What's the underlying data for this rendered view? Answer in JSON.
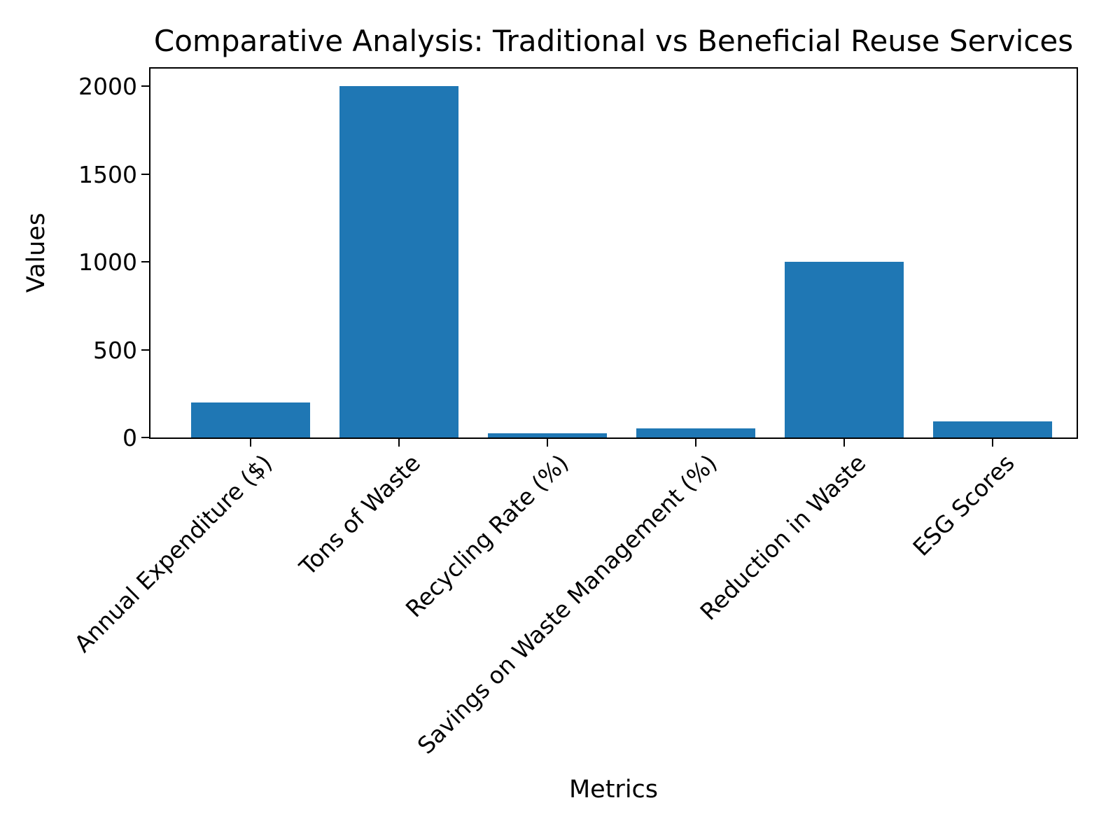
{
  "chart_data": {
    "type": "bar",
    "title": "Comparative Analysis: Traditional vs Beneficial Reuse Services",
    "xlabel": "Metrics",
    "ylabel": "Values",
    "categories": [
      "Annual Expenditure ($)",
      "Tons of Waste",
      "Recycling Rate (%)",
      "Savings on Waste Management (%)",
      "Reduction in Waste",
      "ESG Scores"
    ],
    "values": [
      200,
      2000,
      25,
      50,
      1000,
      90
    ],
    "yticks": [
      0,
      500,
      1000,
      1500,
      2000
    ],
    "ylim": [
      0,
      2100
    ],
    "bar_color": "#1f77b4",
    "axis_color": "#000000",
    "grid": false,
    "legend_position": "none"
  }
}
